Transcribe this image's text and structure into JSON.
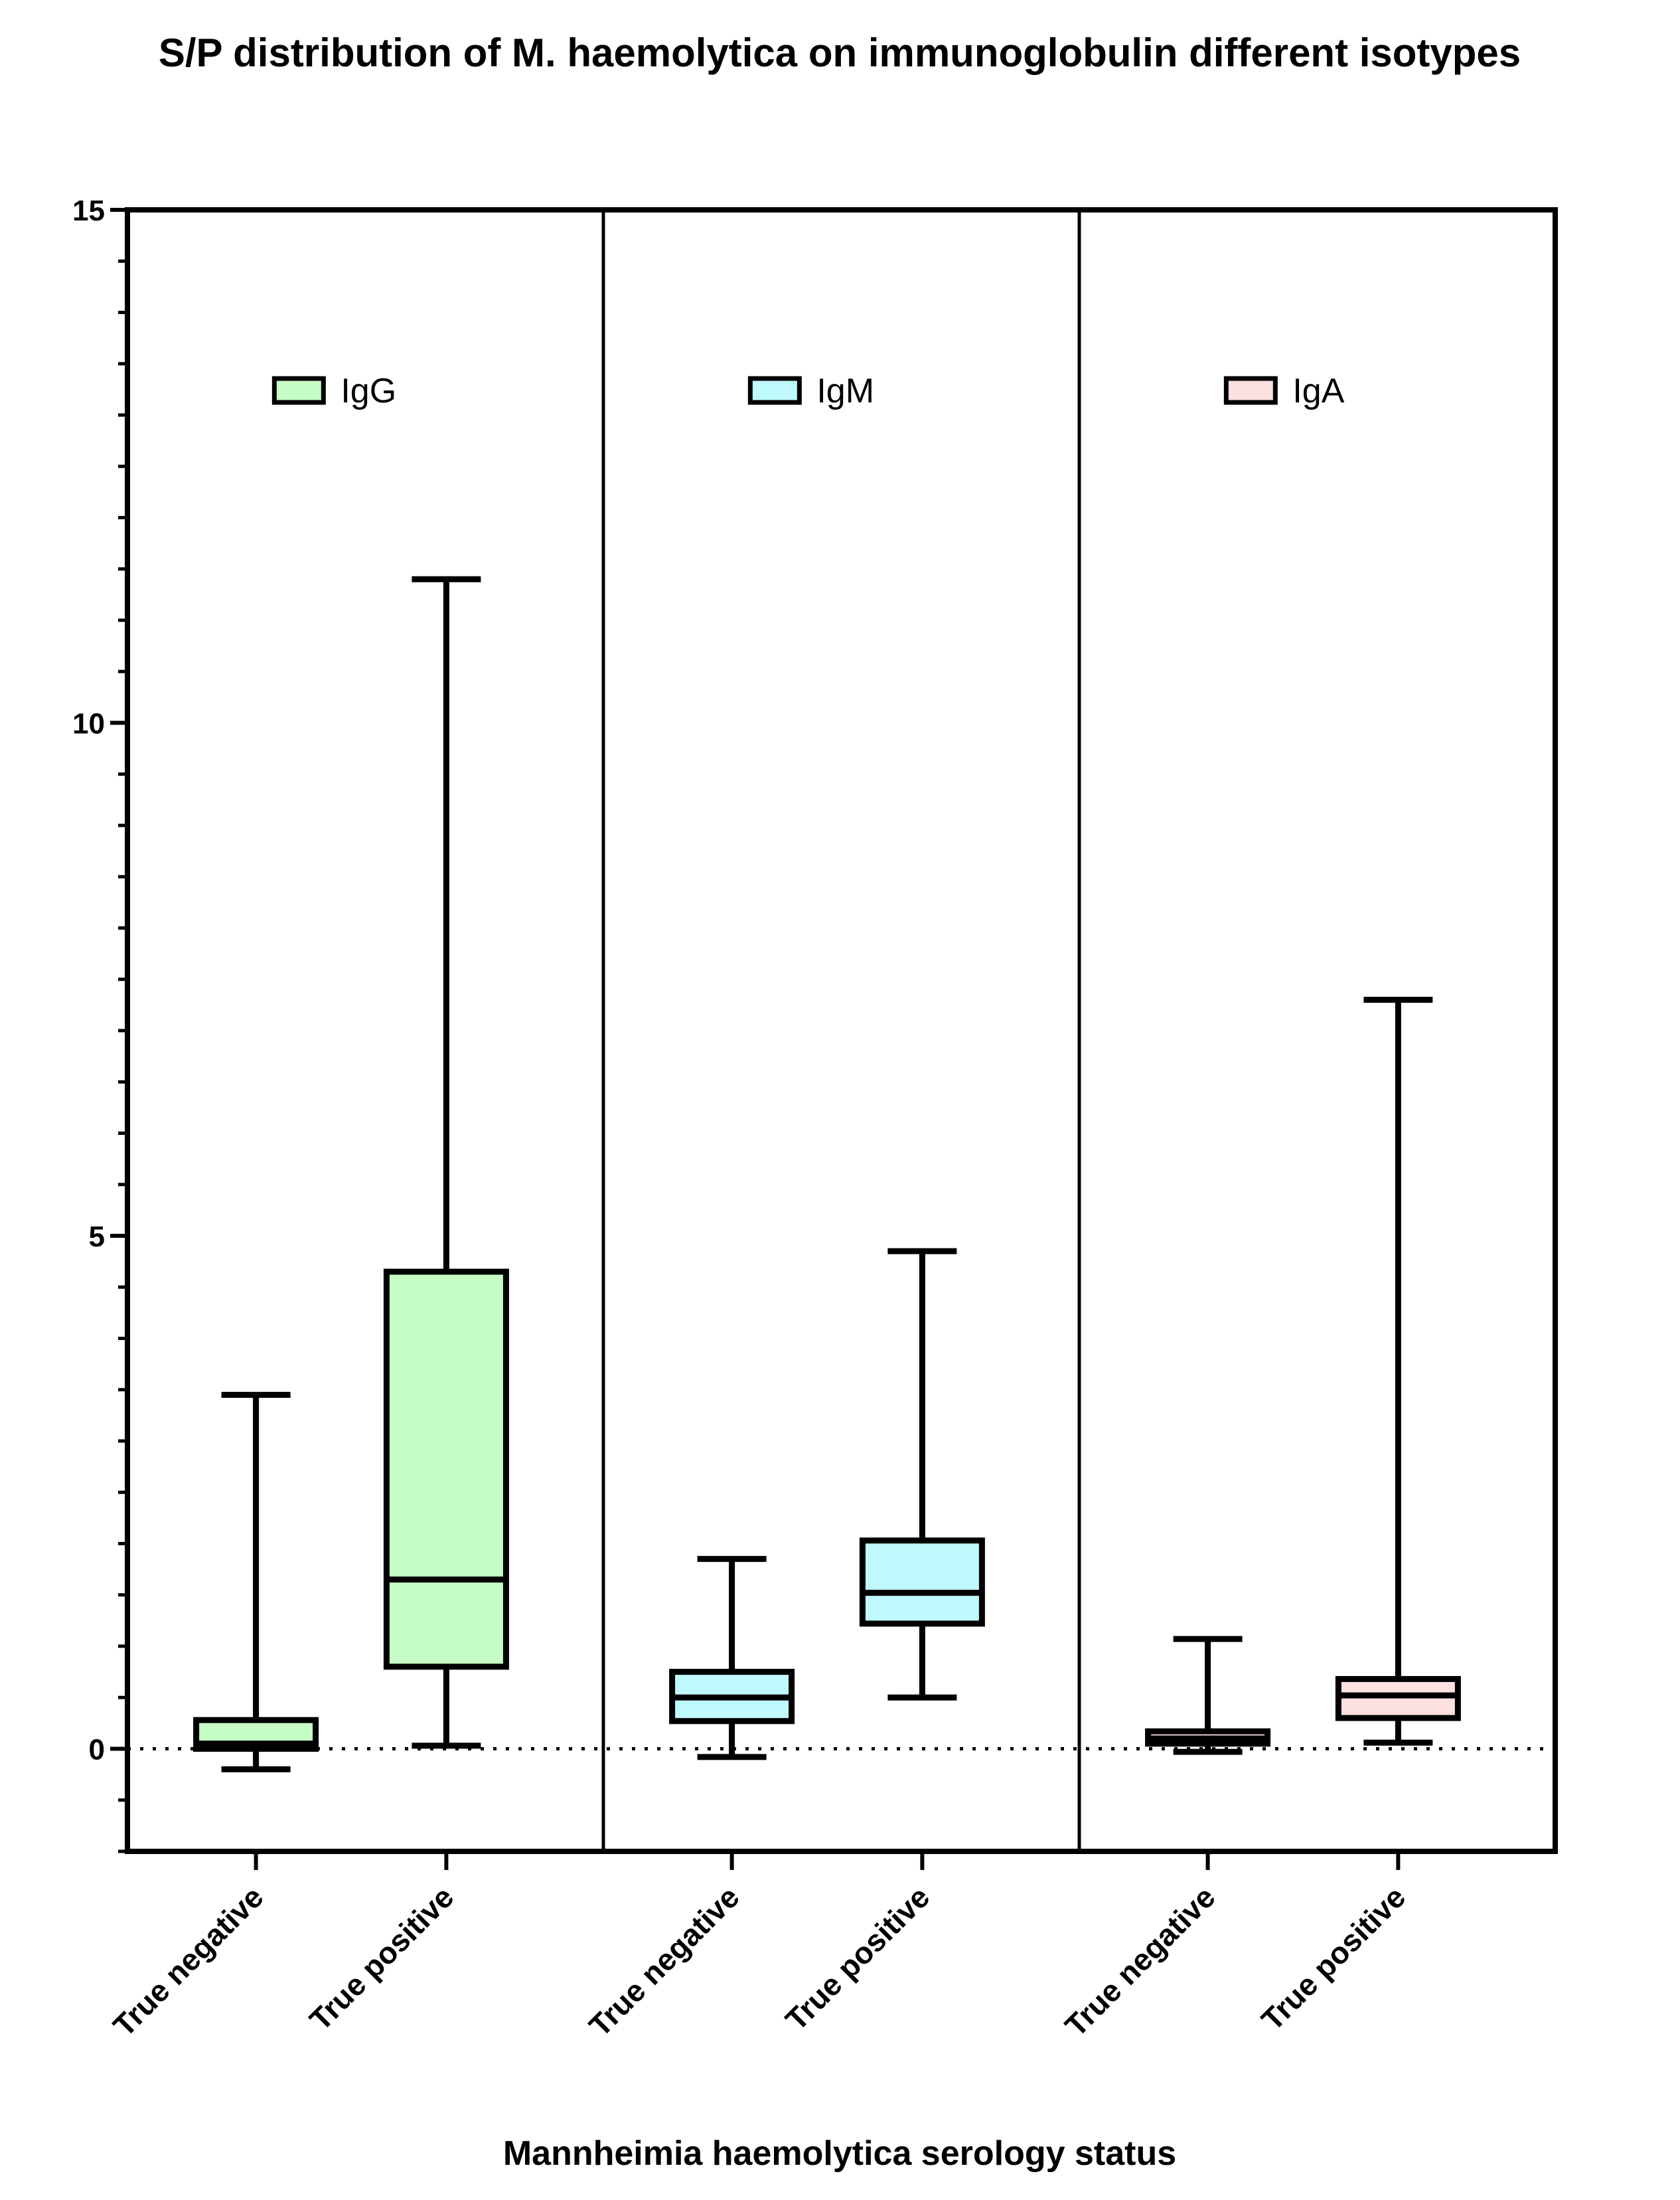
{
  "chart_data": {
    "type": "box",
    "title": "S/P distribution of M. haemolytica on immunoglobulin different isotypes",
    "xlabel": "Mannheimia haemolytica serology status",
    "ylabel": "",
    "ylim": [
      -1,
      15
    ],
    "yticks": [
      "0",
      "5",
      "10",
      "15"
    ],
    "minor_tick_step": 0.5,
    "reference_line": {
      "y": 0,
      "style": "dotted"
    },
    "legend_placement": "top-center of each panel",
    "panels": [
      {
        "isotype": "IgG",
        "legend": "IgG",
        "color": "#c6fcc6",
        "groups": [
          {
            "label": "True negative",
            "min": -0.2,
            "q1": 0.0,
            "median": 0.05,
            "q3": 0.28,
            "max": 3.45
          },
          {
            "label": "True positive",
            "min": 0.03,
            "q1": 0.8,
            "median": 1.65,
            "q3": 4.65,
            "max": 11.4
          }
        ]
      },
      {
        "isotype": "IgM",
        "legend": "IgM",
        "color": "#bff9fd",
        "groups": [
          {
            "label": "True negative",
            "min": -0.08,
            "q1": 0.27,
            "median": 0.5,
            "q3": 0.75,
            "max": 1.85
          },
          {
            "label": "True positive",
            "min": 0.5,
            "q1": 1.22,
            "median": 1.52,
            "q3": 2.03,
            "max": 4.85
          }
        ]
      },
      {
        "isotype": "IgA",
        "legend": "IgA",
        "color": "#fde0e0",
        "groups": [
          {
            "label": "True negative",
            "min": -0.03,
            "q1": 0.05,
            "median": 0.1,
            "q3": 0.17,
            "max": 1.07
          },
          {
            "label": "True positive",
            "min": 0.06,
            "q1": 0.3,
            "median": 0.52,
            "q3": 0.68,
            "max": 7.3
          }
        ]
      }
    ]
  }
}
